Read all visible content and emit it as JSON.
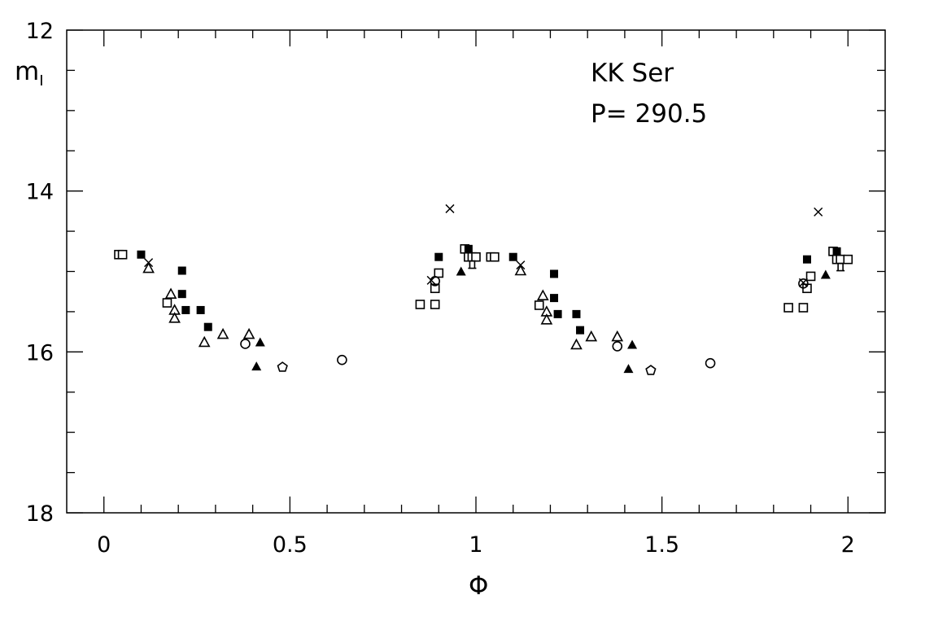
{
  "chart_data": {
    "type": "scatter",
    "title": "",
    "annotations": [
      "KK Ser",
      "P= 290.5"
    ],
    "xlabel": "Φ",
    "ylabel": "m",
    "ylabel_sub": "I",
    "xlim": [
      -0.1,
      2.1
    ],
    "ylim": [
      18,
      12
    ],
    "y_inverted": true,
    "grid": false,
    "x_ticks": [
      "0",
      "0.5",
      "1",
      "1.5",
      "2"
    ],
    "x_tick_values": [
      0,
      0.5,
      1,
      1.5,
      2
    ],
    "y_ticks": [
      "12",
      "14",
      "16",
      "18"
    ],
    "y_tick_values": [
      12,
      14,
      16,
      18
    ],
    "series": [
      {
        "name": "open-square",
        "marker": "open-square",
        "points": [
          [
            0.04,
            14.79
          ],
          [
            0.05,
            14.79
          ],
          [
            0.17,
            15.39
          ],
          [
            0.85,
            15.41
          ],
          [
            0.89,
            15.41
          ],
          [
            0.89,
            15.21
          ],
          [
            0.9,
            15.02
          ],
          [
            0.97,
            14.72
          ],
          [
            0.98,
            14.82
          ],
          [
            0.99,
            14.82
          ],
          [
            1.0,
            14.82
          ],
          [
            1.04,
            14.82
          ],
          [
            1.05,
            14.82
          ],
          [
            1.17,
            15.42
          ],
          [
            1.84,
            15.45
          ],
          [
            1.88,
            15.45
          ],
          [
            1.89,
            15.21
          ],
          [
            1.9,
            15.06
          ],
          [
            1.96,
            14.75
          ],
          [
            1.97,
            14.85
          ],
          [
            1.98,
            14.85
          ],
          [
            2.0,
            14.85
          ]
        ]
      },
      {
        "name": "filled-square",
        "marker": "filled-square",
        "points": [
          [
            0.1,
            14.79
          ],
          [
            0.21,
            14.99
          ],
          [
            0.21,
            15.28
          ],
          [
            0.22,
            15.48
          ],
          [
            0.26,
            15.48
          ],
          [
            0.28,
            15.69
          ],
          [
            0.9,
            14.82
          ],
          [
            0.98,
            14.72
          ],
          [
            1.1,
            14.82
          ],
          [
            1.21,
            15.03
          ],
          [
            1.21,
            15.33
          ],
          [
            1.22,
            15.53
          ],
          [
            1.27,
            15.53
          ],
          [
            1.28,
            15.73
          ],
          [
            1.89,
            14.85
          ],
          [
            1.97,
            14.75
          ]
        ]
      },
      {
        "name": "open-triangle",
        "marker": "open-triangle",
        "points": [
          [
            0.12,
            14.96
          ],
          [
            0.18,
            15.28
          ],
          [
            0.19,
            15.48
          ],
          [
            0.19,
            15.58
          ],
          [
            0.27,
            15.88
          ],
          [
            0.32,
            15.78
          ],
          [
            0.39,
            15.78
          ],
          [
            1.12,
            14.99
          ],
          [
            1.18,
            15.3
          ],
          [
            1.19,
            15.5
          ],
          [
            1.19,
            15.6
          ],
          [
            1.27,
            15.91
          ],
          [
            1.31,
            15.81
          ],
          [
            1.38,
            15.81
          ]
        ]
      },
      {
        "name": "filled-triangle",
        "marker": "filled-triangle",
        "points": [
          [
            0.42,
            15.88
          ],
          [
            0.41,
            16.18
          ],
          [
            0.96,
            15.0
          ],
          [
            1.42,
            15.91
          ],
          [
            1.41,
            16.21
          ],
          [
            1.94,
            15.04
          ]
        ]
      },
      {
        "name": "open-circle",
        "marker": "open-circle",
        "points": [
          [
            0.38,
            15.9
          ],
          [
            0.64,
            16.1
          ],
          [
            0.89,
            15.12
          ],
          [
            1.38,
            15.93
          ],
          [
            1.63,
            16.14
          ],
          [
            1.88,
            15.15
          ]
        ]
      },
      {
        "name": "open-pentagon",
        "marker": "open-pentagon",
        "points": [
          [
            0.48,
            16.19
          ],
          [
            1.47,
            16.23
          ]
        ]
      },
      {
        "name": "cross",
        "marker": "cross",
        "points": [
          [
            0.12,
            14.89
          ],
          [
            0.93,
            14.22
          ],
          [
            0.88,
            15.11
          ],
          [
            1.12,
            14.92
          ],
          [
            1.92,
            14.26
          ],
          [
            1.88,
            15.14
          ]
        ]
      },
      {
        "name": "open-star",
        "marker": "open-star",
        "points": [
          [
            0.99,
            14.92
          ],
          [
            1.98,
            14.95
          ]
        ]
      }
    ]
  }
}
